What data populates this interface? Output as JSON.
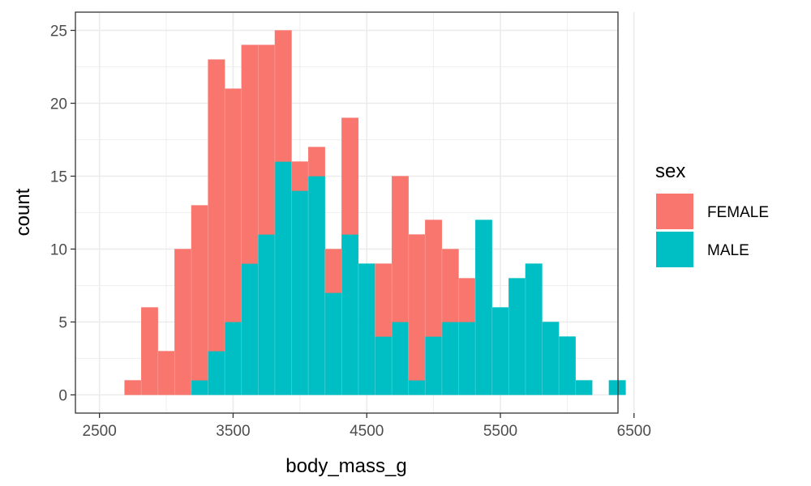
{
  "chart_data": {
    "type": "bar",
    "subtype": "stacked-histogram",
    "title": "",
    "xlabel": "body_mass_g",
    "ylabel": "count",
    "xlim": [
      2500,
      6500
    ],
    "ylim": [
      0,
      25
    ],
    "x_ticks": [
      2500,
      3500,
      4500,
      5500,
      6500
    ],
    "y_ticks": [
      0,
      5,
      10,
      15,
      20,
      25
    ],
    "grid": true,
    "legend_title": "sex",
    "legend_position": "right",
    "bin_width": 125,
    "bins_start": [
      2687.5,
      2812.5,
      2937.5,
      3062.5,
      3187.5,
      3312.5,
      3437.5,
      3562.5,
      3687.5,
      3812.5,
      3937.5,
      4062.5,
      4187.5,
      4312.5,
      4437.5,
      4562.5,
      4687.5,
      4812.5,
      4937.5,
      5062.5,
      5187.5,
      5312.5,
      5437.5,
      5562.5,
      5687.5,
      5812.5,
      5937.5,
      6062.5,
      6187.5,
      6312.5
    ],
    "series": [
      {
        "name": "FEMALE",
        "color": "#F8766D",
        "values": [
          1,
          6,
          3,
          10,
          12,
          20,
          16,
          15,
          13,
          9,
          2,
          2,
          3,
          8,
          0,
          5,
          10,
          10,
          8,
          5,
          3,
          0,
          0,
          0,
          0,
          0,
          0,
          0,
          0,
          0
        ]
      },
      {
        "name": "MALE",
        "color": "#00BFC4",
        "values": [
          0,
          0,
          0,
          0,
          1,
          3,
          5,
          9,
          11,
          16,
          14,
          15,
          7,
          11,
          9,
          4,
          5,
          1,
          4,
          5,
          5,
          12,
          6,
          8,
          9,
          5,
          4,
          1,
          0,
          1
        ]
      }
    ]
  }
}
